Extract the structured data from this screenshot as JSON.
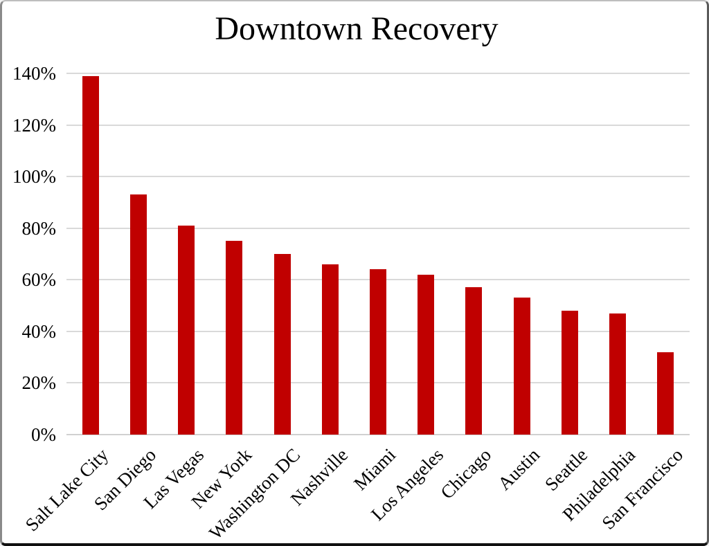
{
  "chart_data": {
    "type": "bar",
    "title": "Downtown Recovery",
    "categories": [
      "Salt Lake City",
      "San Diego",
      "Las Vegas",
      "New York",
      "Washington DC",
      "Nashville",
      "Miami",
      "Los Angeles",
      "Chicago",
      "Austin",
      "Seattle",
      "Philadelphia",
      "San Francisco"
    ],
    "values": [
      139,
      93,
      81,
      75,
      70,
      66,
      64,
      62,
      57,
      53,
      48,
      47,
      32
    ],
    "unit": "%",
    "xlabel": "",
    "ylabel": "",
    "ylim": [
      0,
      140
    ],
    "ytick_step": 20,
    "ytick_labels": [
      "0%",
      "20%",
      "40%",
      "60%",
      "80%",
      "100%",
      "120%",
      "140%"
    ],
    "grid": true,
    "legend": false,
    "x_label_rotation_deg": 45,
    "colors": {
      "bar": "#C00000",
      "gridline": "#D9D9D9",
      "text": "#000000",
      "background": "#FFFFFF"
    }
  }
}
